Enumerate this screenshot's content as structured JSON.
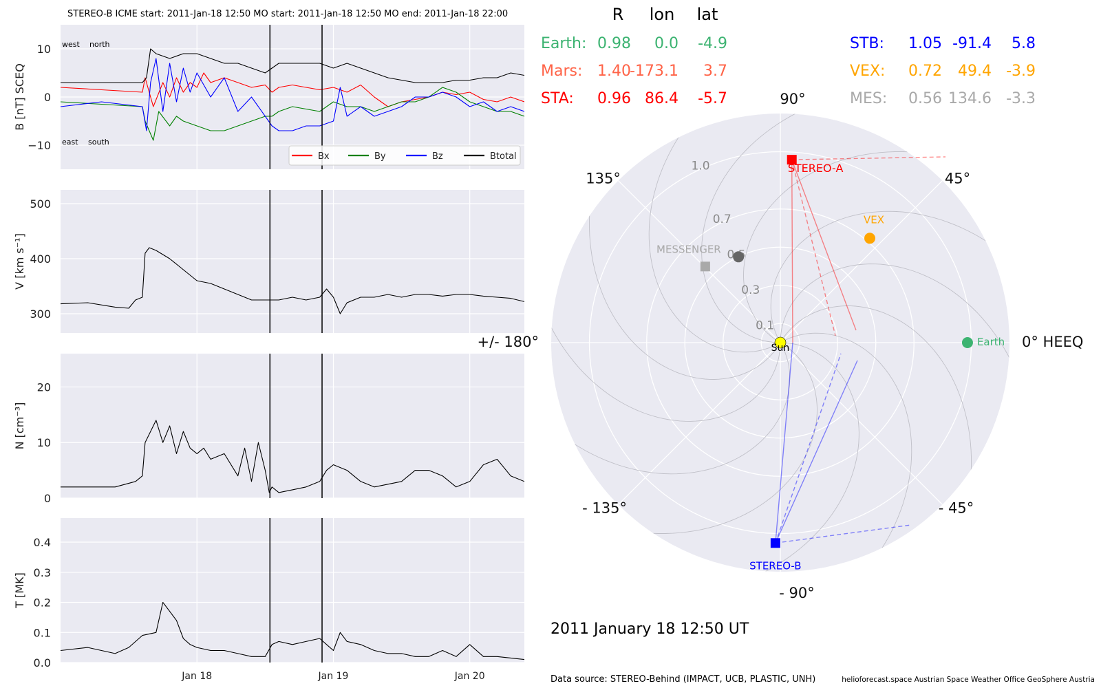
{
  "figure_title": "STEREO-B    ICME start: 2011-Jan-18 12:50   MO start: 2011-Jan-18 12:50   MO end: 2011-Jan-18 22:00",
  "colors": {
    "bg": "#eaeaf2",
    "grid": "#ffffff",
    "bx": "#ff0000",
    "by": "#008000",
    "bz": "#0000ff",
    "btotal": "#000000",
    "earth": "#3cb371",
    "mars": "#ff6347",
    "sta": "#ff0000",
    "stb": "#0000ff",
    "vex": "#ffa500",
    "mes": "#a9a9a9",
    "sun": "#ffff00",
    "dark_dot": "#666666"
  },
  "chart_data": [
    {
      "type": "line",
      "panel": "magnetic_field",
      "ylabel": "B [nT] SCEQ",
      "ylim": [
        -15,
        15
      ],
      "yticks": [
        "10",
        "0",
        "−10"
      ],
      "ytick_values": [
        10,
        0,
        -10
      ],
      "xlim": [
        0.0,
        3.4
      ],
      "xticks": [
        "Jan 18",
        "Jan 19",
        "Jan 20"
      ],
      "xtick_values": [
        1.0,
        2.0,
        3.0
      ],
      "annotations": [
        "west",
        "north",
        "east",
        "south"
      ],
      "vlines": [
        1.535,
        1.917
      ],
      "legend": "lower right",
      "series": [
        {
          "name": "Bx",
          "x": [
            0.0,
            0.3,
            0.6,
            0.62,
            0.68,
            0.75,
            0.8,
            0.85,
            0.9,
            0.95,
            1.0,
            1.05,
            1.1,
            1.2,
            1.3,
            1.4,
            1.5,
            1.55,
            1.6,
            1.7,
            1.8,
            1.9,
            2.0,
            2.1,
            2.2,
            2.3,
            2.4,
            2.5,
            2.6,
            2.7,
            2.8,
            2.9,
            3.0,
            3.1,
            3.2,
            3.3,
            3.4
          ],
          "values": [
            2,
            1.5,
            1,
            4,
            -2,
            3,
            0,
            4,
            1,
            3,
            2,
            5,
            3,
            4,
            3,
            2,
            2.5,
            1,
            2,
            2.5,
            2,
            1.5,
            2,
            1,
            2.5,
            0,
            -2,
            -1,
            -0.5,
            0,
            1,
            0.5,
            1,
            -0.5,
            -1,
            0,
            -1
          ]
        },
        {
          "name": "By",
          "x": [
            0.0,
            0.3,
            0.6,
            0.62,
            0.68,
            0.72,
            0.8,
            0.85,
            0.9,
            1.0,
            1.1,
            1.2,
            1.3,
            1.4,
            1.5,
            1.55,
            1.6,
            1.7,
            1.8,
            1.9,
            2.0,
            2.1,
            2.2,
            2.3,
            2.4,
            2.5,
            2.6,
            2.7,
            2.8,
            2.9,
            3.0,
            3.1,
            3.2,
            3.3,
            3.4
          ],
          "values": [
            -1,
            -1.5,
            -2,
            -5,
            -9,
            -3,
            -6,
            -4,
            -5,
            -6,
            -7,
            -7,
            -6,
            -5,
            -4,
            -4,
            -3,
            -2,
            -2.5,
            -3,
            -1,
            -2,
            -2,
            -3,
            -2,
            -1,
            -1,
            0,
            2,
            1,
            -1,
            -2,
            -3,
            -3,
            -4
          ]
        },
        {
          "name": "Bz",
          "x": [
            0.0,
            0.3,
            0.6,
            0.63,
            0.66,
            0.7,
            0.75,
            0.8,
            0.85,
            0.9,
            0.95,
            1.0,
            1.1,
            1.2,
            1.3,
            1.4,
            1.5,
            1.55,
            1.6,
            1.7,
            1.8,
            1.9,
            2.0,
            2.05,
            2.1,
            2.2,
            2.3,
            2.4,
            2.5,
            2.6,
            2.7,
            2.8,
            2.9,
            3.0,
            3.1,
            3.2,
            3.3,
            3.4
          ],
          "values": [
            -2,
            -1,
            -2,
            -7,
            3,
            8,
            -3,
            7,
            -1,
            6,
            1,
            5,
            0,
            4,
            -3,
            0,
            -4,
            -6,
            -7,
            -7,
            -6,
            -6,
            -5,
            2,
            -4,
            -2,
            -4,
            -3,
            -2,
            0,
            0,
            1,
            0,
            -2,
            -1,
            -3,
            -2,
            -3
          ]
        },
        {
          "name": "Btotal",
          "x": [
            0.0,
            0.3,
            0.6,
            0.63,
            0.66,
            0.7,
            0.8,
            0.9,
            1.0,
            1.1,
            1.2,
            1.3,
            1.4,
            1.5,
            1.55,
            1.6,
            1.7,
            1.8,
            1.9,
            2.0,
            2.1,
            2.2,
            2.3,
            2.4,
            2.5,
            2.6,
            2.7,
            2.8,
            2.9,
            3.0,
            3.1,
            3.2,
            3.3,
            3.4
          ],
          "values": [
            3,
            3,
            3,
            4,
            10,
            9,
            8,
            9,
            9,
            8,
            7,
            7,
            6,
            5,
            6,
            7,
            7,
            7,
            7,
            6,
            7,
            6,
            5,
            4,
            3.5,
            3,
            3,
            3,
            3.5,
            3.5,
            4,
            4,
            5,
            4.5
          ]
        }
      ]
    },
    {
      "type": "line",
      "panel": "speed",
      "ylabel": "V [km s⁻¹]",
      "ylim": [
        265,
        525
      ],
      "yticks": [
        "500",
        "400",
        "300"
      ],
      "ytick_values": [
        500,
        400,
        300
      ],
      "xlim": [
        0.0,
        3.4
      ],
      "vlines": [
        1.535,
        1.917
      ],
      "series": [
        {
          "name": "",
          "x": [
            0.0,
            0.2,
            0.4,
            0.5,
            0.55,
            0.6,
            0.62,
            0.65,
            0.7,
            0.8,
            0.9,
            1.0,
            1.1,
            1.2,
            1.3,
            1.4,
            1.5,
            1.6,
            1.7,
            1.8,
            1.9,
            1.95,
            2.0,
            2.05,
            2.1,
            2.2,
            2.3,
            2.4,
            2.5,
            2.6,
            2.7,
            2.8,
            2.9,
            3.0,
            3.1,
            3.2,
            3.3,
            3.4
          ],
          "values": [
            318,
            320,
            312,
            310,
            325,
            330,
            410,
            420,
            415,
            400,
            380,
            360,
            355,
            345,
            335,
            325,
            325,
            325,
            330,
            325,
            330,
            345,
            330,
            300,
            320,
            330,
            330,
            335,
            330,
            335,
            335,
            332,
            335,
            335,
            332,
            330,
            328,
            322
          ]
        }
      ]
    },
    {
      "type": "line",
      "panel": "density",
      "ylabel": "N [cm⁻³]",
      "ylim": [
        0,
        26
      ],
      "yticks": [
        "20",
        "10",
        "0"
      ],
      "ytick_values": [
        20,
        10,
        0
      ],
      "xlim": [
        0.0,
        3.4
      ],
      "vlines": [
        1.535,
        1.917
      ],
      "series": [
        {
          "name": "",
          "x": [
            0.0,
            0.2,
            0.4,
            0.55,
            0.6,
            0.62,
            0.7,
            0.75,
            0.8,
            0.85,
            0.9,
            0.95,
            1.0,
            1.05,
            1.1,
            1.2,
            1.3,
            1.35,
            1.4,
            1.45,
            1.5,
            1.53,
            1.55,
            1.6,
            1.7,
            1.8,
            1.9,
            1.95,
            2.0,
            2.1,
            2.2,
            2.3,
            2.4,
            2.5,
            2.6,
            2.7,
            2.8,
            2.9,
            3.0,
            3.1,
            3.2,
            3.3,
            3.4
          ],
          "values": [
            2,
            2,
            2,
            3,
            4,
            10,
            14,
            10,
            13,
            8,
            12,
            9,
            8,
            9,
            7,
            8,
            4,
            9,
            3,
            10,
            5,
            1,
            2,
            1,
            1.5,
            2,
            3,
            5,
            6,
            5,
            3,
            2,
            2.5,
            3,
            5,
            5,
            4,
            2,
            3,
            6,
            7,
            4,
            3
          ]
        }
      ]
    },
    {
      "type": "line",
      "panel": "temperature",
      "ylabel": "T [MK]",
      "ylim": [
        0,
        0.48
      ],
      "yticks": [
        "0.4",
        "0.3",
        "0.2",
        "0.1",
        "0.0"
      ],
      "ytick_values": [
        0.4,
        0.3,
        0.2,
        0.1,
        0.0
      ],
      "xlim": [
        0.0,
        3.4
      ],
      "xticks": [
        "Jan 18",
        "Jan 19",
        "Jan 20"
      ],
      "xtick_values": [
        1.0,
        2.0,
        3.0
      ],
      "vlines": [
        1.535,
        1.917
      ],
      "series": [
        {
          "name": "",
          "x": [
            0.0,
            0.2,
            0.4,
            0.5,
            0.6,
            0.7,
            0.75,
            0.8,
            0.85,
            0.9,
            0.95,
            1.0,
            1.1,
            1.2,
            1.3,
            1.4,
            1.5,
            1.55,
            1.6,
            1.7,
            1.8,
            1.9,
            1.95,
            2.0,
            2.05,
            2.1,
            2.2,
            2.3,
            2.4,
            2.5,
            2.6,
            2.7,
            2.8,
            2.9,
            3.0,
            3.1,
            3.2,
            3.3,
            3.4
          ],
          "values": [
            0.04,
            0.05,
            0.03,
            0.05,
            0.09,
            0.1,
            0.2,
            0.17,
            0.14,
            0.08,
            0.06,
            0.05,
            0.04,
            0.04,
            0.03,
            0.02,
            0.02,
            0.06,
            0.07,
            0.06,
            0.07,
            0.08,
            0.06,
            0.04,
            0.1,
            0.07,
            0.06,
            0.04,
            0.03,
            0.03,
            0.02,
            0.02,
            0.04,
            0.02,
            0.06,
            0.02,
            0.02,
            0.015,
            0.01
          ]
        }
      ]
    },
    {
      "type": "scatter",
      "panel": "polar_positions",
      "projection": "polar",
      "rlim": [
        0,
        1.2
      ],
      "rticks": [
        "0.1",
        "0.3",
        "0.5",
        "0.7",
        "1.0"
      ],
      "rtick_values": [
        0.1,
        0.3,
        0.5,
        0.7,
        1.0
      ],
      "angle_labels": [
        "0° HEEQ",
        "45°",
        "90°",
        "135°",
        "+/- 180°",
        "- 135°",
        "- 90°",
        "- 45°"
      ],
      "angle_values": [
        0,
        45,
        90,
        135,
        180,
        -135,
        -90,
        -45
      ],
      "spirals": true,
      "points": [
        {
          "name": "Sun",
          "r": 0.0,
          "lon": 0.0,
          "marker": "circle",
          "color": "sun"
        },
        {
          "name": "Earth",
          "r": 0.98,
          "lon": 0.0,
          "marker": "circle",
          "color": "earth"
        },
        {
          "name": "VEX",
          "r": 0.72,
          "lon": 49.4,
          "marker": "circle",
          "color": "vex"
        },
        {
          "name": "STEREO-A",
          "r": 0.96,
          "lon": 86.4,
          "marker": "square",
          "color": "sta"
        },
        {
          "name": "STEREO-B",
          "r": 1.05,
          "lon": -91.4,
          "marker": "square",
          "color": "stb"
        },
        {
          "name": "MESSENGER",
          "r": 0.56,
          "lon": 134.6,
          "marker": "square",
          "color": "mes"
        },
        {
          "name": "",
          "r": 0.5,
          "lon": 116.0,
          "marker": "circle",
          "color": "dark_dot"
        }
      ]
    }
  ],
  "positions_table": {
    "header": [
      "R",
      "lon",
      "lat"
    ],
    "left": [
      {
        "name": "Earth:",
        "r": "0.98",
        "lon": "0.0",
        "lat": "-4.9",
        "color": "earth"
      },
      {
        "name": "Mars:",
        "r": "1.40",
        "lon": "-173.1",
        "lat": "3.7",
        "color": "mars"
      },
      {
        "name": "STA:",
        "r": "0.96",
        "lon": "86.4",
        "lat": "-5.7",
        "color": "sta"
      }
    ],
    "right": [
      {
        "name": "STB:",
        "r": "1.05",
        "lon": "-91.4",
        "lat": "5.8",
        "color": "stb"
      },
      {
        "name": "VEX:",
        "r": "0.72",
        "lon": "49.4",
        "lat": "-3.9",
        "color": "vex"
      },
      {
        "name": "MES:",
        "r": "0.56",
        "lon": "134.6",
        "lat": "-3.3",
        "color": "mes"
      }
    ]
  },
  "date_label": "2011 January 18  12:50 UT",
  "footer": {
    "source": "Data source: STEREO-Behind (IMPACT, UCB, PLASTIC, UNH)",
    "credits": "helioforecast.space   Austrian Space Weather Office   GeoSphere Austria"
  }
}
